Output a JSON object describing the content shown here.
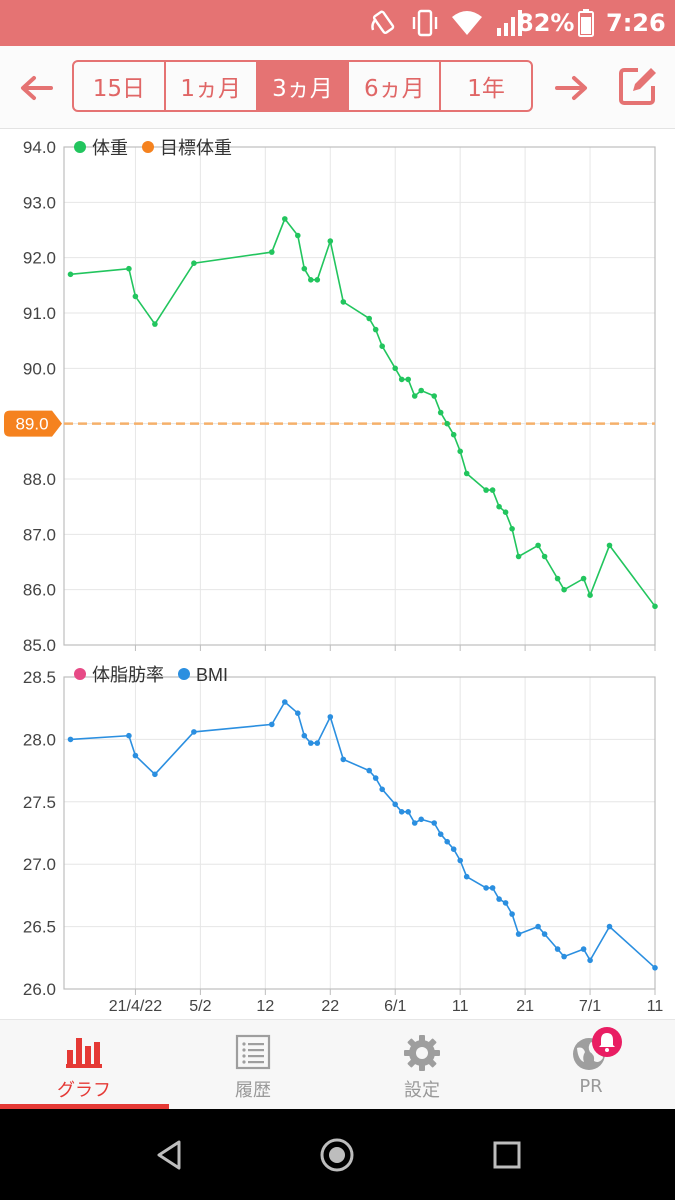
{
  "status_bar": {
    "battery_pct": "82%",
    "time": "7:26"
  },
  "header": {
    "range_tabs": [
      {
        "label": "15日",
        "active": false
      },
      {
        "label": "1ヵ月",
        "active": false
      },
      {
        "label": "3ヵ月",
        "active": true
      },
      {
        "label": "6ヵ月",
        "active": false
      },
      {
        "label": "1年",
        "active": false
      }
    ],
    "prev_icon": "arrow-left-icon",
    "next_icon": "arrow-right-icon",
    "edit_icon": "edit-icon"
  },
  "colors": {
    "accent": "#e57373",
    "weight": "#22c55e",
    "target": "#f59e0b",
    "bodyfat": "#e74a86",
    "bmi": "#2b8fe0"
  },
  "chart_data": [
    {
      "type": "line",
      "title": "",
      "legend": [
        {
          "name": "体重",
          "color": "#22c55e"
        },
        {
          "name": "目標体重",
          "color": "#f5821f"
        }
      ],
      "x_ticks": [
        "21/4/22",
        "5/2",
        "12",
        "22",
        "6/1",
        "11",
        "21",
        "7/1",
        "11"
      ],
      "x_range": [
        "2021-04-11",
        "2021-07-11"
      ],
      "ylim": [
        85.0,
        94.0
      ],
      "y_ticks": [
        "94.0",
        "93.0",
        "92.0",
        "91.0",
        "90.0",
        "89.0",
        "88.0",
        "87.0",
        "86.0",
        "85.0"
      ],
      "target": {
        "value": 89.0,
        "label": "89.0"
      },
      "series": [
        {
          "name": "体重",
          "x": [
            "2021-04-12",
            "2021-04-21",
            "2021-04-22",
            "2021-04-25",
            "2021-05-01",
            "2021-05-13",
            "2021-05-15",
            "2021-05-17",
            "2021-05-18",
            "2021-05-19",
            "2021-05-20",
            "2021-05-22",
            "2021-05-24",
            "2021-05-28",
            "2021-05-29",
            "2021-05-30",
            "2021-06-01",
            "2021-06-02",
            "2021-06-03",
            "2021-06-04",
            "2021-06-05",
            "2021-06-07",
            "2021-06-08",
            "2021-06-09",
            "2021-06-10",
            "2021-06-11",
            "2021-06-12",
            "2021-06-15",
            "2021-06-16",
            "2021-06-17",
            "2021-06-18",
            "2021-06-19",
            "2021-06-20",
            "2021-06-23",
            "2021-06-24",
            "2021-06-26",
            "2021-06-27",
            "2021-06-30",
            "2021-07-01",
            "2021-07-04",
            "2021-07-11"
          ],
          "values": [
            91.7,
            91.8,
            91.3,
            90.8,
            91.9,
            92.1,
            92.7,
            92.4,
            91.8,
            91.6,
            91.6,
            92.3,
            91.2,
            90.9,
            90.7,
            90.4,
            90.0,
            89.8,
            89.8,
            89.5,
            89.6,
            89.5,
            89.2,
            89.0,
            88.8,
            88.5,
            88.1,
            87.8,
            87.8,
            87.5,
            87.4,
            87.1,
            86.6,
            86.8,
            86.6,
            86.2,
            86.0,
            86.2,
            85.9,
            86.8,
            85.7
          ]
        }
      ]
    },
    {
      "type": "line",
      "title": "",
      "legend": [
        {
          "name": "体脂肪率",
          "color": "#e74a86"
        },
        {
          "name": "BMI",
          "color": "#2b8fe0"
        }
      ],
      "x_ticks": [
        "21/4/22",
        "5/2",
        "12",
        "22",
        "6/1",
        "11",
        "21",
        "7/1",
        "11"
      ],
      "x_range": [
        "2021-04-11",
        "2021-07-11"
      ],
      "ylim": [
        26.0,
        28.5
      ],
      "y_ticks": [
        "28.5",
        "28.0",
        "27.5",
        "27.0",
        "26.5",
        "26.0"
      ],
      "series": [
        {
          "name": "BMI",
          "x": [
            "2021-04-12",
            "2021-04-21",
            "2021-04-22",
            "2021-04-25",
            "2021-05-01",
            "2021-05-13",
            "2021-05-15",
            "2021-05-17",
            "2021-05-18",
            "2021-05-19",
            "2021-05-20",
            "2021-05-22",
            "2021-05-24",
            "2021-05-28",
            "2021-05-29",
            "2021-05-30",
            "2021-06-01",
            "2021-06-02",
            "2021-06-03",
            "2021-06-04",
            "2021-06-05",
            "2021-06-07",
            "2021-06-08",
            "2021-06-09",
            "2021-06-10",
            "2021-06-11",
            "2021-06-12",
            "2021-06-15",
            "2021-06-16",
            "2021-06-17",
            "2021-06-18",
            "2021-06-19",
            "2021-06-20",
            "2021-06-23",
            "2021-06-24",
            "2021-06-26",
            "2021-06-27",
            "2021-06-30",
            "2021-07-01",
            "2021-07-04",
            "2021-07-11"
          ],
          "values": [
            28.0,
            28.03,
            27.87,
            27.72,
            28.06,
            28.12,
            28.3,
            28.21,
            28.03,
            27.97,
            27.97,
            28.18,
            27.84,
            27.75,
            27.69,
            27.6,
            27.48,
            27.42,
            27.42,
            27.33,
            27.36,
            27.33,
            27.24,
            27.18,
            27.12,
            27.03,
            26.9,
            26.81,
            26.81,
            26.72,
            26.69,
            26.6,
            26.44,
            26.5,
            26.44,
            26.32,
            26.26,
            26.32,
            26.23,
            26.5,
            26.17
          ]
        }
      ]
    }
  ],
  "bottom_nav": [
    {
      "label": "グラフ",
      "icon": "bar-chart-icon",
      "active": true
    },
    {
      "label": "履歴",
      "icon": "list-icon",
      "active": false
    },
    {
      "label": "設定",
      "icon": "gear-icon",
      "active": false
    },
    {
      "label": "PR",
      "icon": "globe-icon",
      "badge_icon": "bell-icon",
      "active": false
    }
  ]
}
